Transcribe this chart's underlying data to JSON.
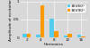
{
  "categories": [
    "2",
    "4",
    "8",
    "12",
    "16"
  ],
  "series": [
    {
      "label": "16V60°",
      "color": "#55ccee",
      "values": [
        0.1,
        0.07,
        0.52,
        0.06,
        0.08
      ]
    },
    {
      "label": "16V90°",
      "color": "#ff9900",
      "values": [
        0.11,
        0.9,
        0.18,
        0.1,
        0.04
      ]
    }
  ],
  "xlabel": "Harmonics",
  "ylabel": "Amplitude of excitation",
  "ylim": [
    0,
    1.0
  ],
  "background_color": "#d8d8d8",
  "grid_color": "#ffffff",
  "legend_fontsize": 3.2,
  "axis_fontsize": 3.0,
  "tick_fontsize": 3.0,
  "bar_width": 0.3
}
